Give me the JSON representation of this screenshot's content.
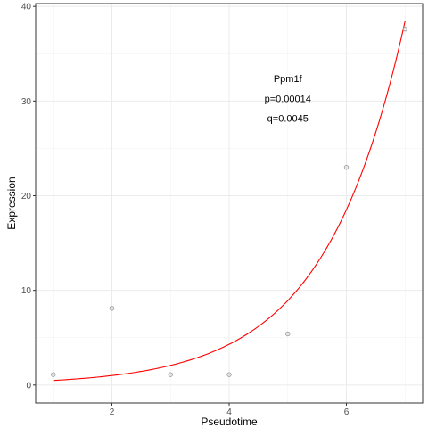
{
  "chart_data": {
    "type": "scatter",
    "xlabel": "Pseudotime",
    "ylabel": "Expression",
    "xlim": [
      0.7,
      7.3
    ],
    "ylim": [
      -1.9,
      40.3
    ],
    "x_ticks": [
      2,
      4,
      6
    ],
    "y_ticks": [
      0,
      10,
      20,
      30,
      40
    ],
    "x_minor": [
      1,
      3,
      5,
      7
    ],
    "y_minor": [
      5,
      15,
      25,
      35
    ],
    "grid": true,
    "series": [
      {
        "kind": "points",
        "x": [
          1,
          2,
          3,
          4,
          5,
          6,
          7
        ],
        "y": [
          1.1,
          8.1,
          1.1,
          1.1,
          5.4,
          23.0,
          37.6
        ],
        "color": "#999999"
      },
      {
        "kind": "fitted-curve",
        "model": "exponential",
        "a": 0.232,
        "b": 0.73,
        "x_range": [
          1,
          7
        ],
        "color": "#ff0000"
      }
    ],
    "annotations": [
      {
        "text": "Ppm1f",
        "x": 5.0,
        "y": 32.0
      },
      {
        "text": "p=0.00014",
        "x": 5.0,
        "y": 29.9
      },
      {
        "text": "q=0.0045",
        "x": 5.0,
        "y": 27.8
      }
    ]
  }
}
